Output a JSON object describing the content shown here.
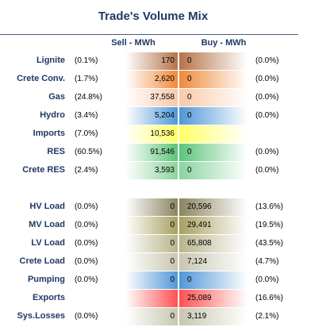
{
  "title": "Trade's Volume Mix",
  "headers": {
    "sell": "Sell - MWh",
    "buy": "Buy - MWh"
  },
  "colors": {
    "Lignite": "#b5734a",
    "Crete Conv.": "#f08a3a",
    "Gas": "#f8c9a8",
    "Hydro": "#4f97d8",
    "Imports": "#ffff66",
    "RES": "#5cc47a",
    "Crete RES": "#8ad49e",
    "HV Load": "#8a8460",
    "MV Load": "#a8a060",
    "LV Load": "#b8b48a",
    "Crete Load": "#c8c6b0",
    "Pumping": "#4f97d8",
    "Exports": "#ff5050",
    "Sys.Losses": "#c8c6b0"
  },
  "rows": [
    {
      "label": "Lignite",
      "sell_pct": "(0.1%)",
      "sell": "170",
      "buy": "0",
      "buy_pct": "(0.0%)"
    },
    {
      "label": "Crete Conv.",
      "sell_pct": "(1.7%)",
      "sell": "2,620",
      "buy": "0",
      "buy_pct": "(0.0%)"
    },
    {
      "label": "Gas",
      "sell_pct": "(24.8%)",
      "sell": "37,558",
      "buy": "0",
      "buy_pct": "(0.0%)"
    },
    {
      "label": "Hydro",
      "sell_pct": "(3.4%)",
      "sell": "5,204",
      "buy": "0",
      "buy_pct": "(0.0%)"
    },
    {
      "label": "Imports",
      "sell_pct": "(7.0%)",
      "sell": "10,536",
      "buy": "",
      "buy_pct": ""
    },
    {
      "label": "RES",
      "sell_pct": "(60.5%)",
      "sell": "91,546",
      "buy": "0",
      "buy_pct": "(0.0%)"
    },
    {
      "label": "Crete RES",
      "sell_pct": "(2.4%)",
      "sell": "3,593",
      "buy": "0",
      "buy_pct": "(0.0%)"
    },
    {
      "label": "HV Load",
      "sell_pct": "(0.0%)",
      "sell": "0",
      "buy": "20,596",
      "buy_pct": "(13.6%)"
    },
    {
      "label": "MV Load",
      "sell_pct": "(0.0%)",
      "sell": "0",
      "buy": "29,491",
      "buy_pct": "(19.5%)"
    },
    {
      "label": "LV Load",
      "sell_pct": "(0.0%)",
      "sell": "0",
      "buy": "65,808",
      "buy_pct": "(43.5%)"
    },
    {
      "label": "Crete Load",
      "sell_pct": "(0.0%)",
      "sell": "0",
      "buy": "7,124",
      "buy_pct": "(4.7%)"
    },
    {
      "label": "Pumping",
      "sell_pct": "(0.0%)",
      "sell": "0",
      "buy": "0",
      "buy_pct": "(0.0%)"
    },
    {
      "label": "Exports",
      "sell_pct": "",
      "sell": "",
      "buy": "25,089",
      "buy_pct": "(16.6%)"
    },
    {
      "label": "Sys.Losses",
      "sell_pct": "(0.0%)",
      "sell": "0",
      "buy": "3,119",
      "buy_pct": "(2.1%)"
    }
  ]
}
